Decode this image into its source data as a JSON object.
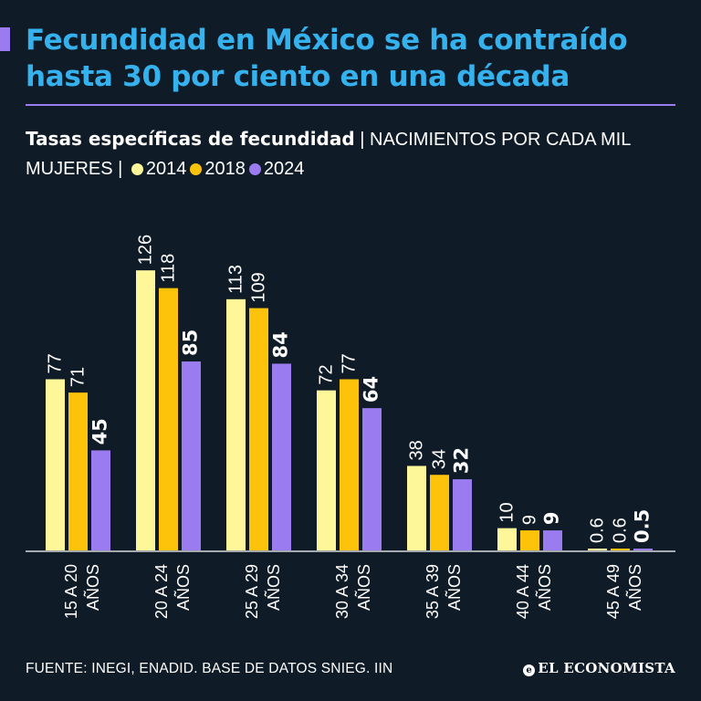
{
  "header": {
    "title": "Fecundidad en México se ha contraído hasta 30 por ciento en una década"
  },
  "subtitle": {
    "bold": "Tasas específicas de fecundidad",
    "rest": "| NACIMIENTOS POR CADA MIL MUJERES |"
  },
  "footer": {
    "source": "FUENTE: INEGI, ENADID. BASE DE DATOS SNIEG. IIN",
    "logo": "EL ECONOMISTA",
    "logo_mark": "e"
  },
  "colors": {
    "background": "#0f1b27",
    "title": "#35b2ee",
    "accent": "#9b7cf0"
  },
  "chart_data": {
    "type": "bar",
    "title": "Tasas específicas de fecundidad",
    "ylabel": "NACIMIENTOS POR CADA MIL MUJERES",
    "ylim": [
      0,
      130
    ],
    "categories": [
      "15 A 20 AÑOS",
      "20 A 24 AÑOS",
      "25 A 29 AÑOS",
      "30 A 34 AÑOS",
      "35 A 39 AÑOS",
      "40 A 44 AÑOS",
      "45 A 49 AÑOS"
    ],
    "series": [
      {
        "name": "2014",
        "color": "#fdf79a",
        "values": [
          77,
          126,
          113,
          72,
          38,
          10,
          0.6
        ],
        "labels": [
          "77",
          "126",
          "113",
          "72",
          "38",
          "10",
          "0.6"
        ]
      },
      {
        "name": "2018",
        "color": "#fdc20a",
        "values": [
          71,
          118,
          109,
          77,
          34,
          9,
          0.6
        ],
        "labels": [
          "71",
          "118",
          "109",
          "77",
          "34",
          "9",
          "0.6"
        ]
      },
      {
        "name": "2024",
        "color": "#9b7cf0",
        "values": [
          45,
          85,
          84,
          64,
          32,
          9,
          0.5
        ],
        "labels": [
          "45",
          "85",
          "84",
          "64",
          "32",
          "9",
          "0.5"
        ]
      }
    ],
    "legend": "top",
    "grid": false
  }
}
